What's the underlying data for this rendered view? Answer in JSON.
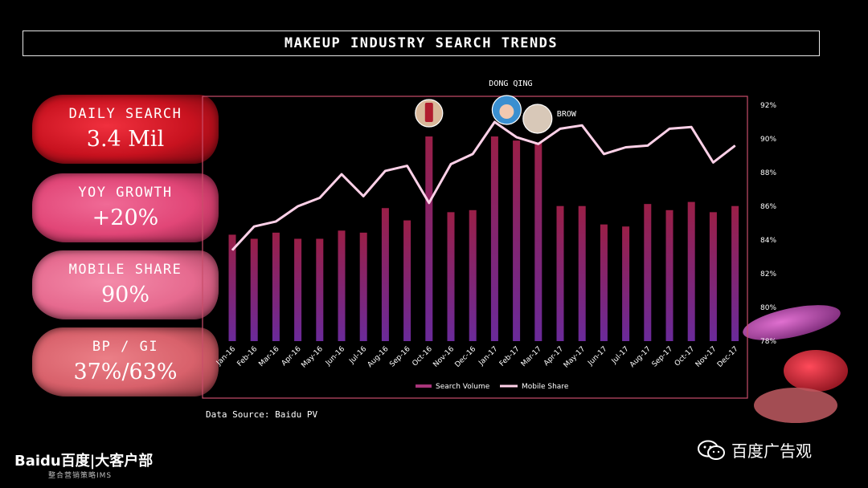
{
  "title": "MAKEUP INDUSTRY SEARCH TRENDS",
  "stats": [
    {
      "label": "DAILY SEARCH",
      "value": "3.4 Mil"
    },
    {
      "label": "YOY GROWTH",
      "value": "+20%"
    },
    {
      "label": "MOBILE SHARE",
      "value": "90%"
    },
    {
      "label": "BP / GI",
      "value": "37%/63%"
    }
  ],
  "data_source": "Data Source: Baidu PV",
  "footer": {
    "logo_text": "Baidu百度|大客户部",
    "logo_sub": "整合营销策略IMS",
    "wechat_name": "百度广告观"
  },
  "colors": {
    "bar": "#8e1e50",
    "line": "#ffd1e8",
    "frame": "#c94d6a"
  },
  "chart_data": {
    "type": "bar",
    "title": "",
    "categories": [
      "Jan-16",
      "Feb-16",
      "Mar-16",
      "Apr-16",
      "May-16",
      "Jun-16",
      "Jul-16",
      "Aug-16",
      "Sep-16",
      "Oct-16",
      "Nov-16",
      "Dec-16",
      "Jan-17",
      "Feb-17",
      "Mar-17",
      "Apr-17",
      "May-17",
      "Jun-17",
      "Jul-17",
      "Aug-17",
      "Sep-17",
      "Oct-17",
      "Nov-17",
      "Dec-17"
    ],
    "series": [
      {
        "name": "Search Volume",
        "type": "bar",
        "values": [
          52,
          50,
          53,
          50,
          50,
          54,
          53,
          65,
          59,
          100,
          63,
          64,
          100,
          98,
          97,
          66,
          66,
          57,
          56,
          67,
          64,
          68,
          63,
          66
        ]
      },
      {
        "name": "Mobile Share",
        "type": "line",
        "axis": "right",
        "values": [
          83.4,
          84.8,
          85.1,
          86.0,
          86.5,
          87.9,
          86.6,
          88.1,
          88.4,
          86.2,
          88.5,
          89.1,
          91.0,
          90.1,
          89.7,
          90.6,
          90.8,
          89.1,
          89.5,
          89.6,
          90.6,
          90.7,
          88.6,
          89.6
        ]
      }
    ],
    "y2_ticks": [
      "78%",
      "80%",
      "82%",
      "84%",
      "86%",
      "88%",
      "90%",
      "92%"
    ],
    "y2lim": [
      78,
      92
    ],
    "annotations": [
      {
        "text": "DONG QING",
        "category": "Feb-17"
      },
      {
        "text": "BROW",
        "category": "Mar-17"
      }
    ],
    "legend": [
      "Search Volume",
      "Mobile Share"
    ],
    "legend_position": "bottom",
    "grid": false
  }
}
